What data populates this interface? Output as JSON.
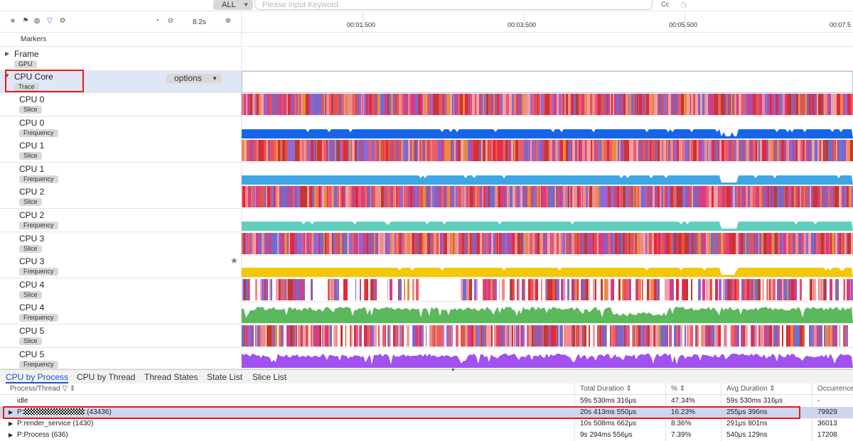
{
  "search": {
    "scope": "ALL",
    "placeholder": "Please Input Keyword",
    "case_label": "Cc"
  },
  "toolbar": {
    "zoom": "8.2s"
  },
  "ruler": {
    "ticks": [
      "00:01.500",
      "00:03.500",
      "00:05.500",
      "00:07.5"
    ]
  },
  "markers_label": "Markers",
  "tracks": {
    "frame": {
      "name": "Frame",
      "tag": "GPU"
    },
    "cpu_core": {
      "name": "CPU Core",
      "tag": "Trace",
      "options_label": "options"
    },
    "cpu_rows": [
      {
        "name": "CPU 0",
        "tag": "Slice"
      },
      {
        "name": "CPU 0",
        "tag": "Frequency"
      },
      {
        "name": "CPU 1",
        "tag": "Slice"
      },
      {
        "name": "CPU 1",
        "tag": "Frequency"
      },
      {
        "name": "CPU 2",
        "tag": "Slice"
      },
      {
        "name": "CPU 2",
        "tag": "Frequency"
      },
      {
        "name": "CPU 3",
        "tag": "Slice"
      },
      {
        "name": "CPU 3",
        "tag": "Frequency"
      },
      {
        "name": "CPU 4",
        "tag": "Slice"
      },
      {
        "name": "CPU 4",
        "tag": "Frequency"
      },
      {
        "name": "CPU 5",
        "tag": "Slice"
      },
      {
        "name": "CPU 5",
        "tag": "Frequency"
      }
    ]
  },
  "freq_colors": [
    "#1565e8",
    "#3fa6e6",
    "#5fcfbd",
    "#f4c800",
    "#5cb85c",
    "#a051f0"
  ],
  "slice_colors": [
    "#e6283a",
    "#f05a6e",
    "#ef8c8c",
    "#9b5aa6",
    "#6a6fd4",
    "#e98b3a",
    "#d93b8a",
    "#c0392b",
    "#8e6ad8",
    "#f2a0a8",
    "#e4544c",
    "#b04f9a"
  ],
  "bottom_tabs": [
    "CPU by Process",
    "CPU by Thread",
    "Thread States",
    "State List",
    "Slice List"
  ],
  "table": {
    "headers": [
      "Process/Thread",
      "Total Duration",
      "%",
      "Avg Duration",
      "Occurrence"
    ],
    "rows": [
      {
        "name": "idle",
        "total": "59s 530ms 316μs",
        "pct": "47.34%",
        "avg": "59s 530ms 316μs",
        "occ": "-"
      },
      {
        "name_prefix": "P:",
        "name_suffix": " (43436)",
        "total": "20s 413ms 550μs",
        "pct": "16.23%",
        "avg": "255μs 396ns",
        "occ": "79929"
      },
      {
        "name": "P:render_service (1430)",
        "total": "10s 508ms 662μs",
        "pct": "8.36%",
        "avg": "291μs 801ns",
        "occ": "36013"
      },
      {
        "name": "P:Process (636)",
        "total": "9s 294ms 556μs",
        "pct": "7.39%",
        "avg": "540μs 129ns",
        "occ": "17208"
      }
    ]
  }
}
